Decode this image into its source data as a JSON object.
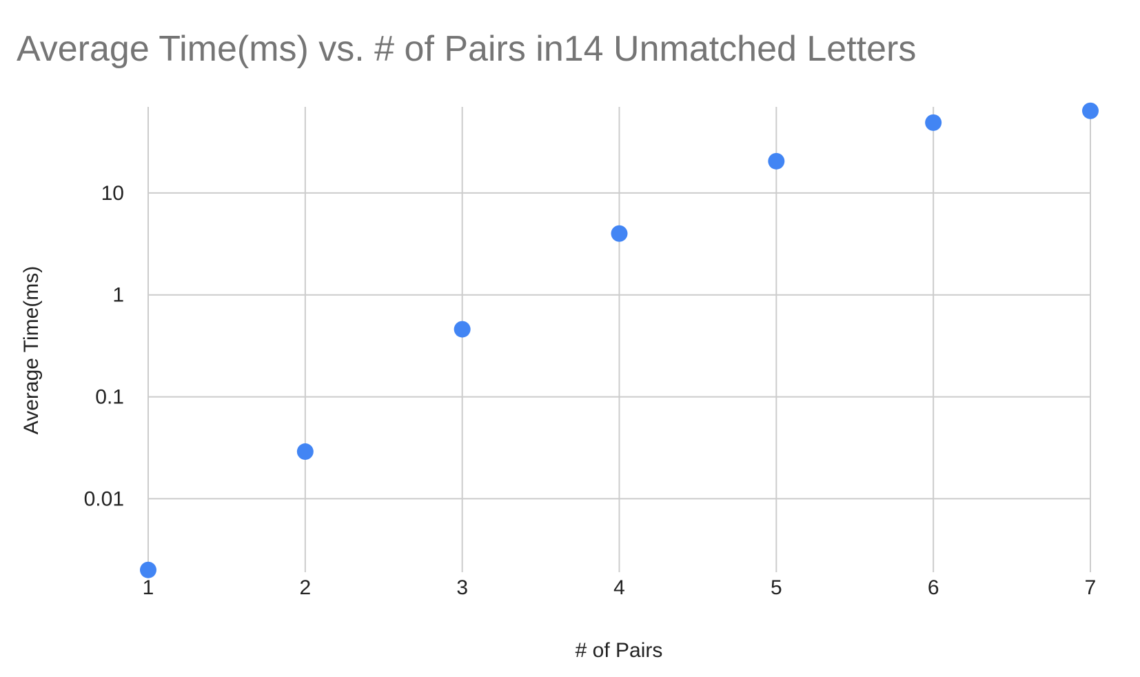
{
  "chart_data": {
    "type": "scatter",
    "title": "Average Time(ms) vs. # of Pairs in14 Unmatched Letters",
    "xlabel": "# of Pairs",
    "ylabel": "Average Time(ms)",
    "x_ticks": [
      "1",
      "2",
      "3",
      "4",
      "5",
      "6",
      "7"
    ],
    "y_ticks": [
      {
        "value": 0.01,
        "label": "0.01"
      },
      {
        "value": 0.1,
        "label": "0.1"
      },
      {
        "value": 1,
        "label": "1"
      },
      {
        "value": 10,
        "label": "10"
      }
    ],
    "xlim": [
      1,
      7
    ],
    "ylim": [
      0.0019,
      70
    ],
    "y_scale": "log",
    "grid": true,
    "color": "#4285F4",
    "points": [
      {
        "x": 1,
        "y": 0.002
      },
      {
        "x": 2,
        "y": 0.029
      },
      {
        "x": 3,
        "y": 0.46
      },
      {
        "x": 4,
        "y": 4.0
      },
      {
        "x": 5,
        "y": 20.5
      },
      {
        "x": 6,
        "y": 49
      },
      {
        "x": 7,
        "y": 64
      }
    ]
  }
}
